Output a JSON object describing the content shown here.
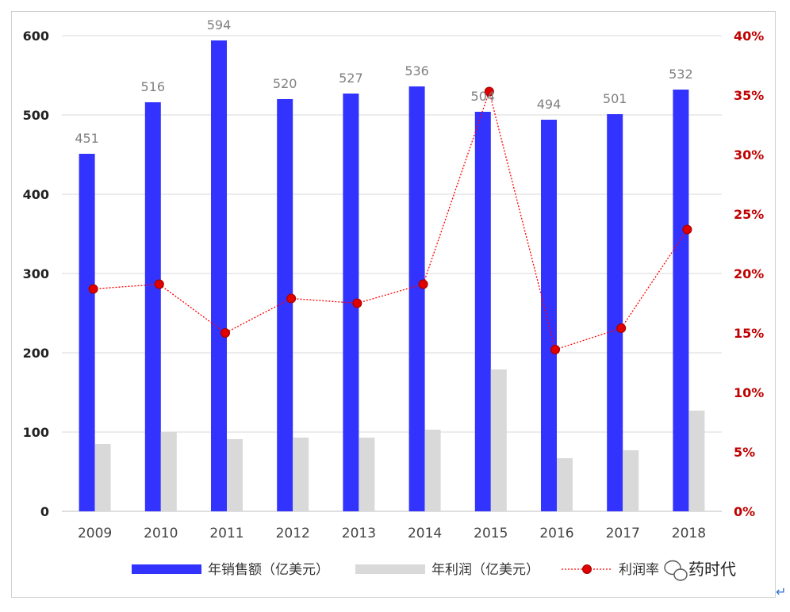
{
  "chart_data": {
    "type": "bar",
    "categories": [
      "2009",
      "2010",
      "2011",
      "2012",
      "2013",
      "2014",
      "2015",
      "2016",
      "2017",
      "2018"
    ],
    "series": [
      {
        "name": "年销售额（亿美元）",
        "kind": "bar",
        "axis": "left",
        "color": "#3333ff",
        "values": [
          451,
          516,
          594,
          520,
          527,
          536,
          504,
          494,
          501,
          532
        ],
        "labels": [
          "451",
          "516",
          "594",
          "520",
          "527",
          "536",
          "504",
          "494",
          "501",
          "532"
        ]
      },
      {
        "name": "年利润（亿美元）",
        "kind": "bar",
        "axis": "left",
        "color": "#d9d9d9",
        "values": [
          85,
          100,
          91,
          93,
          93,
          103,
          179,
          67,
          77,
          127
        ]
      },
      {
        "name": "利润率",
        "kind": "line",
        "axis": "right",
        "color": "#ff0000",
        "values": [
          18.7,
          19.1,
          15.0,
          17.9,
          17.5,
          19.1,
          35.3,
          13.6,
          15.4,
          23.7
        ]
      }
    ],
    "y_left": {
      "min": 0,
      "max": 600,
      "ticks": [
        "0",
        "100",
        "200",
        "300",
        "400",
        "500",
        "600"
      ]
    },
    "y_right": {
      "min": 0,
      "max": 40,
      "ticks": [
        "0%",
        "5%",
        "10%",
        "15%",
        "20%",
        "25%",
        "30%",
        "35%",
        "40%"
      ]
    },
    "grid": true,
    "legend_position": "bottom"
  },
  "watermark": {
    "text": "药时代",
    "icon": "wechat-icon"
  },
  "return_mark": "↵"
}
